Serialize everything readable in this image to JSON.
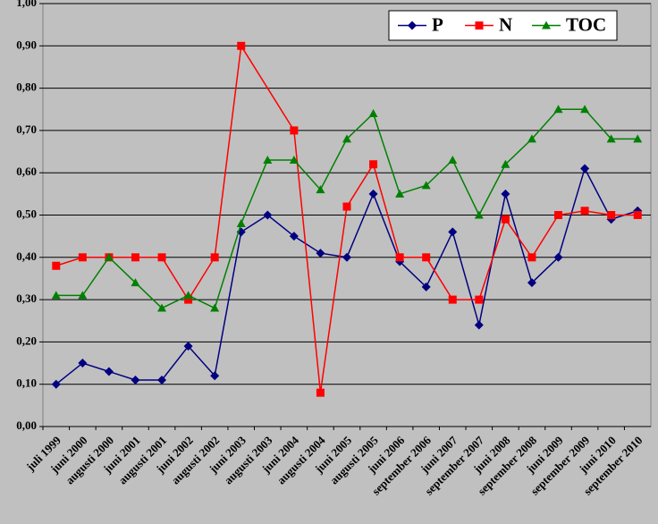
{
  "chart_data": {
    "type": "line",
    "categories": [
      "juli 1999",
      "juni 2000",
      "augusti 2000",
      "juni 2001",
      "augusti 2001",
      "juni 2002",
      "augusti 2002",
      "juni 2003",
      "augusti 2003",
      "juni 2004",
      "augusti 2004",
      "juni 2005",
      "augusti 2005",
      "juni 2006",
      "september 2006",
      "juni 2007",
      "september 2007",
      "juni 2008",
      "september 2008",
      "juni 2009",
      "september 2009",
      "juni 2010",
      "september 2010"
    ],
    "series": [
      {
        "name": "P",
        "color": "#000080",
        "marker": "diamond",
        "values": [
          0.1,
          0.15,
          0.13,
          0.11,
          0.11,
          0.19,
          0.12,
          0.46,
          0.5,
          0.45,
          0.41,
          0.4,
          0.55,
          0.39,
          0.33,
          0.46,
          0.24,
          0.55,
          0.34,
          0.4,
          0.61,
          0.49,
          0.51
        ]
      },
      {
        "name": "N",
        "color": "#ff0000",
        "marker": "square",
        "values": [
          0.38,
          0.4,
          0.4,
          0.4,
          0.4,
          0.3,
          0.4,
          0.9,
          null,
          0.7,
          0.08,
          0.52,
          0.62,
          0.4,
          0.4,
          0.3,
          0.3,
          0.49,
          0.4,
          0.5,
          0.51,
          0.5,
          0.5
        ]
      },
      {
        "name": "TOC",
        "color": "#008000",
        "marker": "triangle",
        "values": [
          0.31,
          0.31,
          0.4,
          0.34,
          0.28,
          0.31,
          0.28,
          0.48,
          0.63,
          0.63,
          0.56,
          0.68,
          0.74,
          0.55,
          0.57,
          0.63,
          0.5,
          0.62,
          0.68,
          0.75,
          0.75,
          0.68,
          0.68
        ]
      }
    ],
    "ylim": [
      0,
      1
    ],
    "yticks": [
      {
        "value": 0,
        "label": "0,00"
      },
      {
        "value": 0.1,
        "label": "0,10"
      },
      {
        "value": 0.2,
        "label": "0,20"
      },
      {
        "value": 0.3,
        "label": "0,30"
      },
      {
        "value": 0.4,
        "label": "0,40"
      },
      {
        "value": 0.5,
        "label": "0,50"
      },
      {
        "value": 0.6,
        "label": "0,60"
      },
      {
        "value": 0.7,
        "label": "0,70"
      },
      {
        "value": 0.8,
        "label": "0,80"
      },
      {
        "value": 0.9,
        "label": "0,90"
      },
      {
        "value": 1,
        "label": "1,00"
      }
    ],
    "grid": true,
    "span_gaps": true,
    "legend": "top-right"
  }
}
